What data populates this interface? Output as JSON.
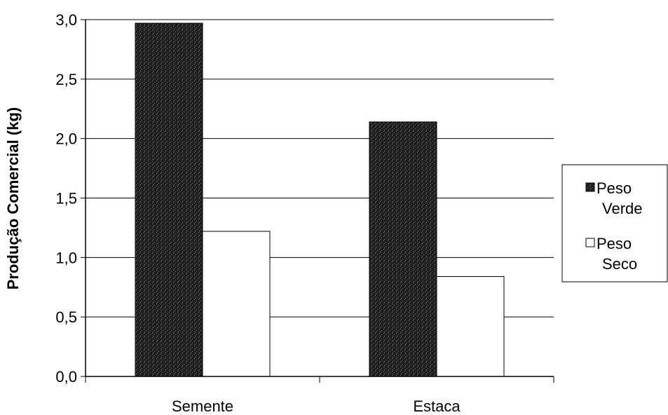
{
  "chart_data": {
    "type": "bar",
    "categories": [
      "Semente",
      "Estaca"
    ],
    "series": [
      {
        "name": "Peso Verde",
        "values": [
          2.97,
          2.14
        ],
        "color": "#2b2b2b"
      },
      {
        "name": "Peso Seco",
        "values": [
          1.22,
          0.84
        ],
        "color": "#ffffff"
      }
    ],
    "ylabel": "Produção Comercial (kg)",
    "ylim": [
      0,
      3.0
    ],
    "yticks": [
      "0,0",
      "0,5",
      "1,0",
      "1,5",
      "2,0",
      "2,5",
      "3,0"
    ],
    "grid": true,
    "legend_position": "right",
    "legend": [
      {
        "line1": "Peso",
        "line2": "Verde"
      },
      {
        "line1": "Peso",
        "line2": "Seco"
      }
    ]
  }
}
